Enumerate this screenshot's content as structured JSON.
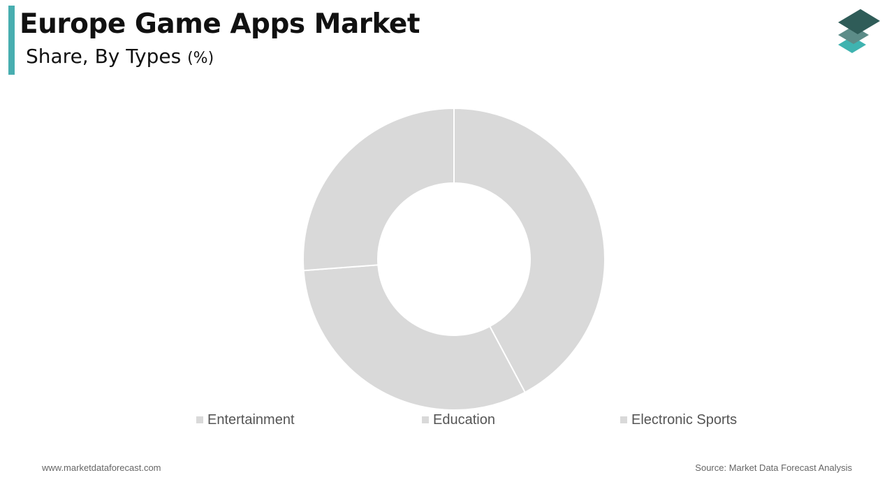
{
  "header": {
    "title": "Europe Game Apps Market",
    "subtitle": "Share, By Types",
    "unit": "(%)"
  },
  "colors": {
    "accent": "#48aeb0",
    "slice": "#d9d9d9",
    "slice_border": "#ffffff",
    "legend_swatch": "#d9d9d9",
    "logo_top": "#2f5c58",
    "logo_middle": "#5c8c88",
    "logo_bottom": "#3fb3b0"
  },
  "chart_data": {
    "type": "pie",
    "donut": true,
    "start_angle_deg": 0,
    "direction": "clockwise",
    "categories": [
      "Entertainment",
      "Education",
      "Electronic Sports"
    ],
    "values": [
      42.2,
      31.6,
      26.2
    ],
    "legend_position": "bottom"
  },
  "footer": {
    "website": "www.marketdataforecast.com",
    "source": "Source: Market Data Forecast Analysis"
  }
}
